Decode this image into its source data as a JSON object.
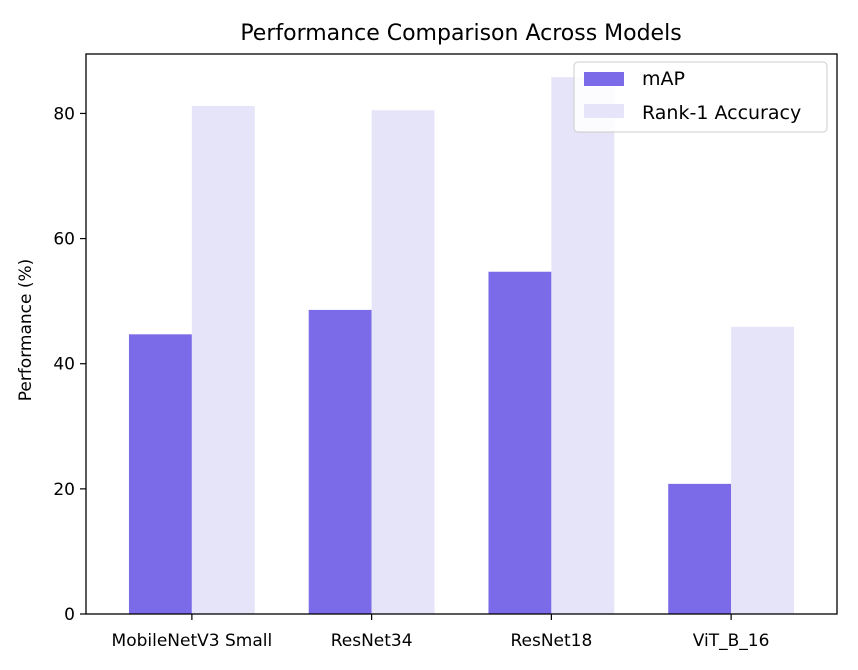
{
  "chart_data": {
    "type": "bar",
    "title": "Performance Comparison Across Models",
    "xlabel": "",
    "ylabel": "Performance (%)",
    "categories": [
      "MobileNetV3 Small",
      "ResNet34",
      "ResNet18",
      "ViT_B_16"
    ],
    "series": [
      {
        "name": "mAP",
        "values": [
          44.7,
          48.6,
          54.7,
          20.8
        ],
        "color": "#7b6be8"
      },
      {
        "name": "Rank-1 Accuracy",
        "values": [
          81.2,
          80.5,
          85.8,
          45.9
        ],
        "color": "#e6e4f8"
      }
    ],
    "ylim": [
      0,
      89.5
    ],
    "yticks": [
      0,
      20,
      40,
      60,
      80
    ],
    "grid": false,
    "legend_position": "top-right"
  }
}
